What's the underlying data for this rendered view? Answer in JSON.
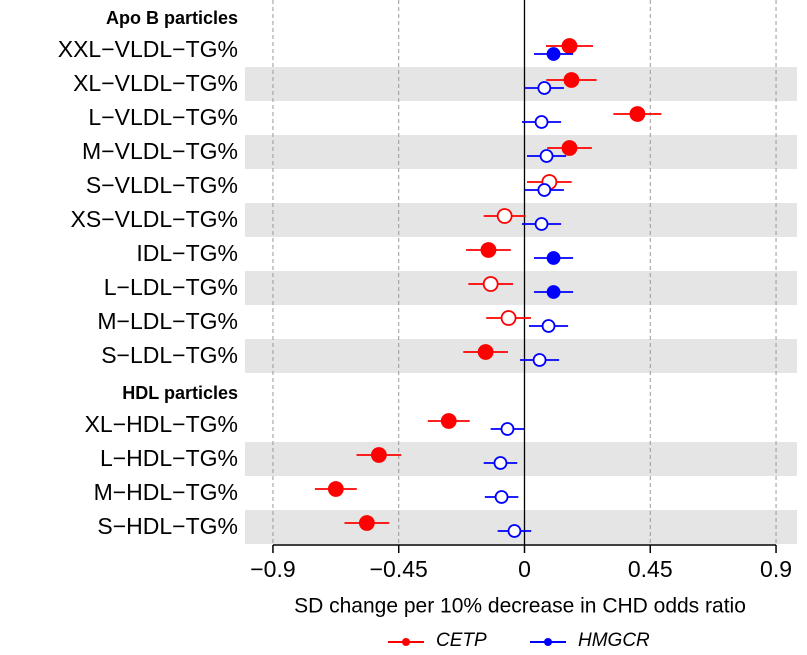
{
  "chart_data": {
    "type": "forest",
    "x_label": "SD change per 10% decrease in CHD odds ratio",
    "xlim": [
      -1,
      0.975
    ],
    "xticks": [
      {
        "value": -0.9,
        "label": "−0.9"
      },
      {
        "value": -0.45,
        "label": "−0.45"
      },
      0,
      0.45,
      0.9
    ],
    "groups": [
      {
        "name": "Apo B particles",
        "categories": [
          "XXL−VLDL−TG%",
          "XL−VLDL−TG%",
          "L−VLDL−TG%",
          "M−VLDL−TG%",
          "S−VLDL−TG%",
          "XS−VLDL−TG%",
          "IDL−TG%",
          "L−LDL−TG%",
          "M−LDL−TG%",
          "S−LDL−TG%"
        ]
      },
      {
        "name": "HDL particles",
        "categories": [
          "XL−HDL−TG%",
          "L−HDL−TG%",
          "M−HDL−TG%",
          "S−HDL−TG%"
        ]
      }
    ],
    "series": [
      {
        "name": "CETP",
        "color": "#ff0000",
        "values": [
          [
            0.161,
            0.168,
            0.404,
            0.161,
            0.089,
            -0.071,
            -0.129,
            -0.121,
            -0.057,
            -0.139
          ],
          [
            -0.271,
            -0.521,
            -0.675,
            -0.564
          ]
        ],
        "errors": [
          [
            0.084,
            0.09,
            0.086,
            0.08,
            0.08,
            0.075,
            0.08,
            0.08,
            0.08,
            0.08
          ],
          [
            0.075,
            0.08,
            0.075,
            0.08
          ]
        ],
        "filled": [
          [
            true,
            true,
            true,
            true,
            false,
            false,
            true,
            false,
            false,
            true
          ],
          [
            true,
            true,
            true,
            true
          ]
        ]
      },
      {
        "name": "HMGCR",
        "color": "#0000ff",
        "values": [
          [
            0.104,
            0.071,
            0.061,
            0.079,
            0.071,
            0.061,
            0.104,
            0.104,
            0.086,
            0.054
          ],
          [
            -0.061,
            -0.086,
            -0.082,
            -0.036
          ]
        ],
        "errors": [
          [
            0.07,
            0.07,
            0.07,
            0.07,
            0.07,
            0.07,
            0.07,
            0.07,
            0.07,
            0.07
          ],
          [
            0.06,
            0.06,
            0.06,
            0.06
          ]
        ],
        "filled": [
          [
            true,
            false,
            false,
            false,
            false,
            false,
            true,
            true,
            false,
            false
          ],
          [
            false,
            false,
            false,
            false
          ]
        ]
      }
    ]
  }
}
